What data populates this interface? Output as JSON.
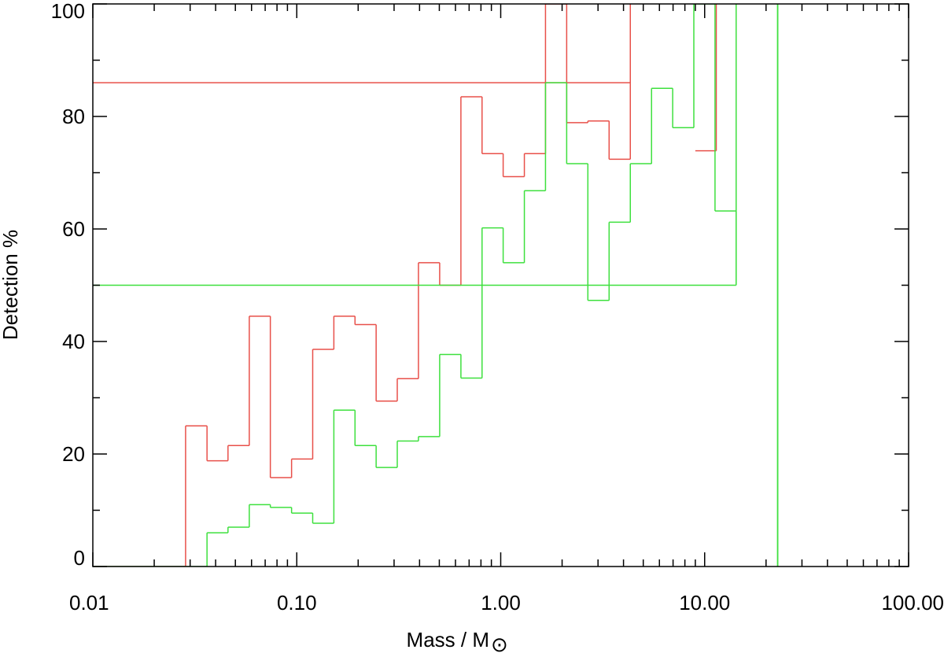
{
  "chart_data": {
    "type": "line",
    "step": true,
    "xscale": "log",
    "xlim": [
      0.01,
      100.0
    ],
    "ylim": [
      0,
      100
    ],
    "xlabel": "Mass / M",
    "xlabel_symbol": "⊙",
    "ylabel": "Detection %",
    "title": "",
    "legend": "none",
    "grid": false,
    "x_ticks": [
      {
        "value": 0.01,
        "label": "0.01"
      },
      {
        "value": 0.1,
        "label": "0.10"
      },
      {
        "value": 1.0,
        "label": "1.00"
      },
      {
        "value": 10.0,
        "label": "10.00"
      },
      {
        "value": 100.0,
        "label": "100.00"
      }
    ],
    "y_ticks": [
      {
        "value": 0,
        "label": "0"
      },
      {
        "value": 20,
        "label": "20"
      },
      {
        "value": 40,
        "label": "40"
      },
      {
        "value": 60,
        "label": "60"
      },
      {
        "value": 80,
        "label": "80"
      },
      {
        "value": 100,
        "label": "100"
      }
    ],
    "series": [
      {
        "color": "#e8504a",
        "bin_edges": [
          0.0285,
          0.0363,
          0.046,
          0.0585,
          0.0742,
          0.0943,
          0.1197,
          0.152,
          0.193,
          0.245,
          0.311,
          0.395,
          0.502,
          0.638,
          0.81,
          1.028,
          1.306,
          1.658,
          2.106,
          2.675,
          3.4,
          4.32
        ],
        "values": [
          25,
          18.8,
          21.5,
          44.5,
          15.8,
          19.1,
          38.6,
          44.5,
          43.0,
          29.4,
          33.4,
          54.0,
          50.0,
          83.5,
          73.4,
          69.3,
          73.4,
          100,
          78.9,
          79.2,
          72.4,
          86.0
        ],
        "extra_segments": [
          {
            "x0": 9.0,
            "x1": 11.4,
            "value": 73.9
          }
        ]
      },
      {
        "color": "#3ee03e",
        "bin_edges": [
          0.0363,
          0.046,
          0.0585,
          0.0742,
          0.0943,
          0.1197,
          0.152,
          0.193,
          0.245,
          0.311,
          0.395,
          0.502,
          0.638,
          0.81,
          1.028,
          1.306,
          1.658,
          2.106,
          2.675,
          3.4,
          4.32,
          5.49,
          6.97,
          8.85,
          11.24,
          14.27
        ],
        "values": [
          6.0,
          7.0,
          11.0,
          10.5,
          9.5,
          7.7,
          27.8,
          21.5,
          17.6,
          22.3,
          23.1,
          37.7,
          33.5,
          60.2,
          54.0,
          66.8,
          86.0,
          71.6,
          47.3,
          61.2,
          71.6,
          85.0,
          78.0,
          100,
          63.2,
          50.0
        ],
        "vertical_lines": [
          22.8
        ]
      }
    ]
  }
}
